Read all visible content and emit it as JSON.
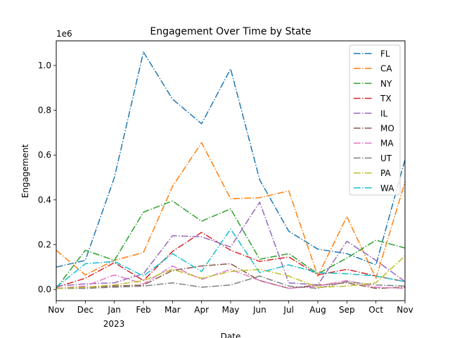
{
  "chart_data": {
    "type": "line",
    "title": "Engagement Over Time by State",
    "xlabel": "Date",
    "ylabel": "Engagement",
    "y_offset_label": "1e6",
    "x_tick_labels": [
      "Nov",
      "Dec",
      "Jan",
      "Feb",
      "Mar",
      "Apr",
      "May",
      "Jun",
      "Jul",
      "Aug",
      "Sep",
      "Oct",
      "Nov"
    ],
    "x_year_label": "2023",
    "x": [
      "2022-11",
      "2022-12",
      "2023-01",
      "2023-02",
      "2023-03",
      "2023-04",
      "2023-05",
      "2023-06",
      "2023-07",
      "2023-08",
      "2023-09",
      "2023-10",
      "2023-11"
    ],
    "y_tick_labels": [
      "0.0",
      "0.2",
      "0.4",
      "0.6",
      "0.8",
      "1.0"
    ],
    "y_ticks": [
      0,
      200000,
      400000,
      600000,
      800000,
      1000000
    ],
    "ylim": [
      -50000,
      1110000
    ],
    "grid": false,
    "legend_position": "top-right",
    "line_style": "dash-dot",
    "series": [
      {
        "name": "FL",
        "color": "#1f77b4",
        "values": [
          100000,
          130000,
          500000,
          1060000,
          850000,
          740000,
          985000,
          490000,
          260000,
          180000,
          160000,
          110000,
          580000
        ]
      },
      {
        "name": "CA",
        "color": "#ff7f0e",
        "values": [
          175000,
          65000,
          130000,
          165000,
          460000,
          655000,
          405000,
          410000,
          440000,
          60000,
          325000,
          50000,
          480000
        ]
      },
      {
        "name": "NY",
        "color": "#2ca02c",
        "values": [
          5000,
          175000,
          130000,
          345000,
          395000,
          305000,
          360000,
          135000,
          160000,
          70000,
          140000,
          220000,
          185000
        ]
      },
      {
        "name": "TX",
        "color": "#d62728",
        "values": [
          10000,
          50000,
          120000,
          40000,
          170000,
          255000,
          175000,
          125000,
          145000,
          65000,
          90000,
          60000,
          35000
        ]
      },
      {
        "name": "IL",
        "color": "#9467bd",
        "values": [
          15000,
          25000,
          30000,
          70000,
          240000,
          235000,
          190000,
          390000,
          30000,
          20000,
          215000,
          130000,
          35000
        ]
      },
      {
        "name": "MO",
        "color": "#8c564b",
        "values": [
          5000,
          10000,
          15000,
          20000,
          85000,
          105000,
          115000,
          40000,
          5000,
          20000,
          30000,
          5000,
          10000
        ]
      },
      {
        "name": "MA",
        "color": "#e377c2",
        "values": [
          5000,
          15000,
          65000,
          25000,
          105000,
          45000,
          90000,
          40000,
          5000,
          15000,
          40000,
          10000,
          5000
        ]
      },
      {
        "name": "UT",
        "color": "#7f7f7f",
        "values": [
          5000,
          5000,
          10000,
          15000,
          30000,
          10000,
          20000,
          60000,
          15000,
          5000,
          35000,
          20000,
          15000
        ]
      },
      {
        "name": "PA",
        "color": "#bcbd22",
        "values": [
          5000,
          10000,
          20000,
          40000,
          90000,
          50000,
          80000,
          90000,
          60000,
          10000,
          15000,
          30000,
          150000
        ]
      },
      {
        "name": "WA",
        "color": "#17becf",
        "values": [
          10000,
          115000,
          125000,
          60000,
          160000,
          80000,
          270000,
          75000,
          110000,
          75000,
          70000,
          60000,
          35000
        ]
      }
    ]
  }
}
